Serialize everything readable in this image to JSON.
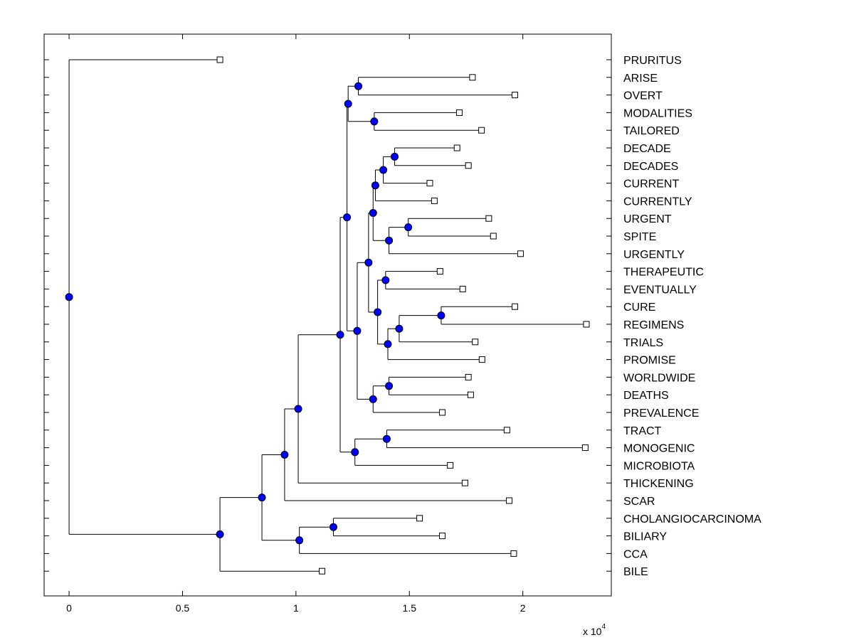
{
  "chart_data": {
    "type": "dendrogram",
    "title": "",
    "xlabel": "",
    "ylabel": "",
    "x_multiplier": {
      "base": "x 10",
      "exponent": "4"
    },
    "xlim": [
      -0.11,
      2.39
    ],
    "x_ticks": [
      {
        "value": 0,
        "label": "0"
      },
      {
        "value": 0.5,
        "label": "0.5"
      },
      {
        "value": 1,
        "label": "1"
      },
      {
        "value": 1.5,
        "label": "1.5"
      },
      {
        "value": 2,
        "label": "2"
      }
    ],
    "leaves": [
      {
        "id": 1,
        "label": "PRURITUS",
        "x": 0.665
      },
      {
        "id": 2,
        "label": "ARISE",
        "x": 1.778
      },
      {
        "id": 3,
        "label": "OVERT",
        "x": 1.965
      },
      {
        "id": 4,
        "label": "MODALITIES",
        "x": 1.72
      },
      {
        "id": 5,
        "label": "TAILORED",
        "x": 1.818
      },
      {
        "id": 6,
        "label": "DECADE",
        "x": 1.71
      },
      {
        "id": 7,
        "label": "DECADES",
        "x": 1.76
      },
      {
        "id": 8,
        "label": "CURRENT",
        "x": 1.59
      },
      {
        "id": 9,
        "label": "CURRENTLY",
        "x": 1.61
      },
      {
        "id": 10,
        "label": "URGENT",
        "x": 1.85
      },
      {
        "id": 11,
        "label": "SPITE",
        "x": 1.87
      },
      {
        "id": 12,
        "label": "URGENTLY",
        "x": 1.99
      },
      {
        "id": 13,
        "label": "THERAPEUTIC",
        "x": 1.635
      },
      {
        "id": 14,
        "label": "EVENTUALLY",
        "x": 1.735
      },
      {
        "id": 15,
        "label": "CURE",
        "x": 1.965
      },
      {
        "id": 16,
        "label": "REGIMENS",
        "x": 2.28
      },
      {
        "id": 17,
        "label": "TRIALS",
        "x": 1.79
      },
      {
        "id": 18,
        "label": "PROMISE",
        "x": 1.82
      },
      {
        "id": 19,
        "label": "WORLDWIDE",
        "x": 1.76
      },
      {
        "id": 20,
        "label": "DEATHS",
        "x": 1.77
      },
      {
        "id": 21,
        "label": "PREVALENCE",
        "x": 1.645
      },
      {
        "id": 22,
        "label": "TRACT",
        "x": 1.93
      },
      {
        "id": 23,
        "label": "MONOGENIC",
        "x": 2.275
      },
      {
        "id": 24,
        "label": "MICROBIOTA",
        "x": 1.68
      },
      {
        "id": 25,
        "label": "THICKENING",
        "x": 1.745
      },
      {
        "id": 26,
        "label": "SCAR",
        "x": 1.94
      },
      {
        "id": 27,
        "label": "CHOLANGIOCARCINOMA",
        "x": 1.545
      },
      {
        "id": 28,
        "label": "BILIARY",
        "x": 1.645
      },
      {
        "id": 29,
        "label": "CCA",
        "x": 1.96
      },
      {
        "id": 30,
        "label": "BILE",
        "x": 1.115
      }
    ],
    "merges": [
      {
        "id": "m1",
        "x": 1.275,
        "children": [
          2,
          3
        ]
      },
      {
        "id": "m2",
        "x": 1.345,
        "children": [
          4,
          5
        ]
      },
      {
        "id": "m3",
        "x": 1.23,
        "children": [
          "m1",
          "m2"
        ]
      },
      {
        "id": "m4",
        "x": 1.435,
        "children": [
          6,
          7
        ]
      },
      {
        "id": "m5",
        "x": 1.385,
        "children": [
          "m4",
          8
        ]
      },
      {
        "id": "m6",
        "x": 1.35,
        "children": [
          "m5",
          9
        ]
      },
      {
        "id": "m7",
        "x": 1.495,
        "children": [
          10,
          11
        ]
      },
      {
        "id": "m8",
        "x": 1.41,
        "children": [
          "m7",
          12
        ]
      },
      {
        "id": "m9",
        "x": 1.34,
        "children": [
          "m6",
          "m8"
        ]
      },
      {
        "id": "m10",
        "x": 1.395,
        "children": [
          13,
          14
        ]
      },
      {
        "id": "m11",
        "x": 1.64,
        "children": [
          15,
          16
        ]
      },
      {
        "id": "m12",
        "x": 1.455,
        "children": [
          "m11",
          17
        ]
      },
      {
        "id": "m13",
        "x": 1.405,
        "children": [
          "m12",
          18
        ]
      },
      {
        "id": "m14",
        "x": 1.36,
        "children": [
          "m10",
          "m13"
        ]
      },
      {
        "id": "m15",
        "x": 1.32,
        "children": [
          "m9",
          "m14"
        ]
      },
      {
        "id": "m16",
        "x": 1.41,
        "children": [
          19,
          20
        ]
      },
      {
        "id": "m17",
        "x": 1.34,
        "children": [
          "m16",
          21
        ]
      },
      {
        "id": "m18",
        "x": 1.27,
        "children": [
          "m15",
          "m17"
        ]
      },
      {
        "id": "m19",
        "x": 1.225,
        "children": [
          "m3",
          "m18"
        ]
      },
      {
        "id": "m20",
        "x": 1.4,
        "children": [
          22,
          23
        ]
      },
      {
        "id": "m21",
        "x": 1.26,
        "children": [
          "m20",
          24
        ]
      },
      {
        "id": "m22",
        "x": 1.195,
        "children": [
          "m19",
          "m21"
        ]
      },
      {
        "id": "m23",
        "x": 1.01,
        "children": [
          "m22",
          25
        ]
      },
      {
        "id": "m24",
        "x": 0.95,
        "children": [
          "m23",
          26
        ]
      },
      {
        "id": "m25",
        "x": 1.165,
        "children": [
          27,
          28
        ]
      },
      {
        "id": "m26",
        "x": 1.015,
        "children": [
          "m25",
          29
        ]
      },
      {
        "id": "m27",
        "x": 0.85,
        "children": [
          "m24",
          "m26"
        ]
      },
      {
        "id": "m28",
        "x": 0.665,
        "children": [
          "m27",
          30
        ]
      },
      {
        "id": "root",
        "x": 0.0,
        "children": [
          1,
          "m28"
        ]
      }
    ],
    "leaf_marker": "open-square",
    "node_marker": "filled-circle",
    "node_color": "#0000ff",
    "line_color": "#000000"
  }
}
